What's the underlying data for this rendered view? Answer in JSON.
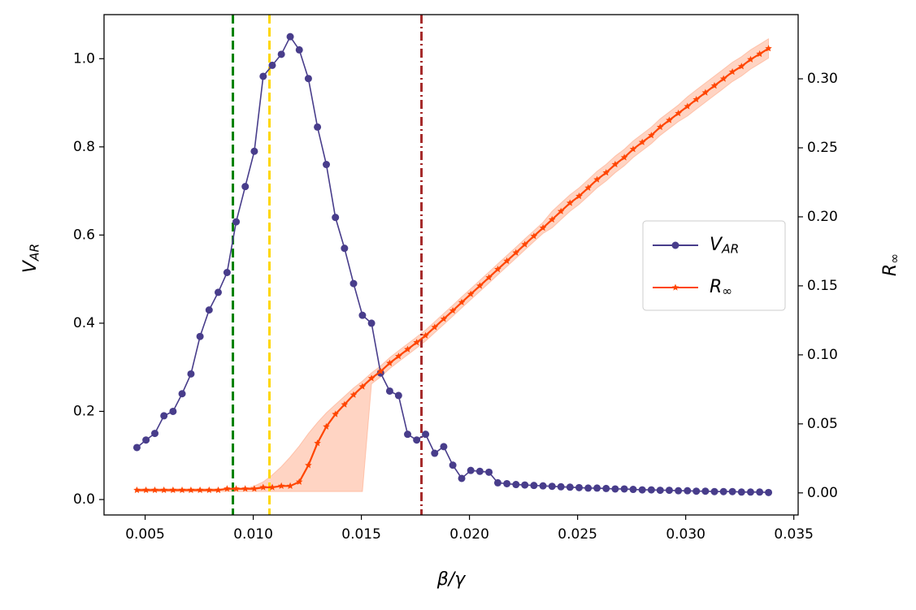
{
  "chart_data": {
    "type": "line",
    "x_label": "β/γ",
    "y_label": "V_AR",
    "y2_label": "R_∞",
    "x": [
      0.00462,
      0.00504,
      0.00545,
      0.00587,
      0.00629,
      0.00671,
      0.00712,
      0.00754,
      0.00796,
      0.00838,
      0.00879,
      0.00921,
      0.00963,
      0.01005,
      0.01046,
      0.01088,
      0.0113,
      0.01171,
      0.01213,
      0.01255,
      0.01297,
      0.01338,
      0.0138,
      0.01422,
      0.01464,
      0.01505,
      0.01547,
      0.01589,
      0.01631,
      0.01672,
      0.01714,
      0.01756,
      0.01797,
      0.01839,
      0.01881,
      0.01923,
      0.01964,
      0.02006,
      0.02048,
      0.0209,
      0.02131,
      0.02173,
      0.02215,
      0.02256,
      0.02298,
      0.0234,
      0.02382,
      0.02423,
      0.02465,
      0.02507,
      0.02549,
      0.0259,
      0.02632,
      0.02674,
      0.02716,
      0.02757,
      0.02799,
      0.02841,
      0.02882,
      0.02924,
      0.02966,
      0.03008,
      0.03049,
      0.03091,
      0.03133,
      0.03175,
      0.03216,
      0.03258,
      0.033,
      0.03342,
      0.03383
    ],
    "series": [
      {
        "name": "V_AR",
        "color": "#483d8b",
        "marker": "circle",
        "axis": "y",
        "values": [
          0.118,
          0.135,
          0.15,
          0.19,
          0.2,
          0.24,
          0.285,
          0.37,
          0.43,
          0.47,
          0.515,
          0.63,
          0.71,
          0.79,
          0.96,
          0.985,
          1.01,
          1.05,
          1.02,
          0.955,
          0.845,
          0.76,
          0.64,
          0.57,
          0.49,
          0.418,
          0.4,
          0.287,
          0.246,
          0.236,
          0.148,
          0.135,
          0.148,
          0.105,
          0.12,
          0.078,
          0.048,
          0.066,
          0.064,
          0.062,
          0.038,
          0.036,
          0.034,
          0.033,
          0.032,
          0.031,
          0.03,
          0.029,
          0.028,
          0.027,
          0.026,
          0.026,
          0.025,
          0.024,
          0.024,
          0.023,
          0.022,
          0.022,
          0.021,
          0.021,
          0.02,
          0.02,
          0.019,
          0.019,
          0.018,
          0.018,
          0.018,
          0.017,
          0.017,
          0.017,
          0.016
        ]
      },
      {
        "name": "R_∞",
        "color": "#ff4500",
        "marker": "star",
        "axis": "y2",
        "band_color": "#ffa07a",
        "values": [
          0.002,
          0.002,
          0.002,
          0.002,
          0.002,
          0.002,
          0.002,
          0.002,
          0.002,
          0.002,
          0.003,
          0.003,
          0.003,
          0.003,
          0.004,
          0.004,
          0.005,
          0.005,
          0.008,
          0.02,
          0.036,
          0.048,
          0.057,
          0.064,
          0.071,
          0.077,
          0.083,
          0.088,
          0.094,
          0.099,
          0.104,
          0.109,
          0.114,
          0.12,
          0.126,
          0.132,
          0.138,
          0.144,
          0.15,
          0.156,
          0.162,
          0.168,
          0.174,
          0.18,
          0.186,
          0.192,
          0.198,
          0.204,
          0.21,
          0.215,
          0.221,
          0.227,
          0.232,
          0.238,
          0.243,
          0.249,
          0.254,
          0.259,
          0.265,
          0.27,
          0.275,
          0.28,
          0.285,
          0.29,
          0.295,
          0.3,
          0.305,
          0.309,
          0.314,
          0.318,
          0.322
        ],
        "upper": [
          0.003,
          0.003,
          0.003,
          0.003,
          0.003,
          0.003,
          0.003,
          0.003,
          0.003,
          0.003,
          0.003,
          0.003,
          0.003,
          0.005,
          0.008,
          0.013,
          0.019,
          0.026,
          0.034,
          0.043,
          0.051,
          0.058,
          0.064,
          0.07,
          0.076,
          0.081,
          0.087,
          0.092,
          0.098,
          0.103,
          0.108,
          0.113,
          0.118,
          0.124,
          0.13,
          0.136,
          0.142,
          0.148,
          0.154,
          0.16,
          0.166,
          0.172,
          0.178,
          0.184,
          0.19,
          0.196,
          0.204,
          0.21,
          0.216,
          0.221,
          0.227,
          0.233,
          0.238,
          0.244,
          0.249,
          0.255,
          0.26,
          0.265,
          0.271,
          0.276,
          0.281,
          0.287,
          0.292,
          0.297,
          0.302,
          0.307,
          0.312,
          0.316,
          0.321,
          0.325,
          0.329
        ],
        "lower": [
          0.001,
          0.001,
          0.001,
          0.001,
          0.001,
          0.001,
          0.001,
          0.001,
          0.001,
          0.001,
          0.001,
          0.001,
          0.001,
          0.001,
          0.001,
          0.001,
          0.001,
          0.001,
          0.001,
          0.001,
          0.001,
          0.001,
          0.001,
          0.001,
          0.001,
          0.001,
          0.079,
          0.084,
          0.09,
          0.095,
          0.1,
          0.105,
          0.11,
          0.116,
          0.122,
          0.128,
          0.134,
          0.14,
          0.146,
          0.152,
          0.158,
          0.164,
          0.17,
          0.176,
          0.182,
          0.188,
          0.192,
          0.198,
          0.204,
          0.209,
          0.215,
          0.221,
          0.226,
          0.232,
          0.237,
          0.243,
          0.248,
          0.253,
          0.259,
          0.264,
          0.269,
          0.273,
          0.278,
          0.283,
          0.288,
          0.293,
          0.298,
          0.302,
          0.307,
          0.311,
          0.315
        ]
      }
    ],
    "vlines": [
      {
        "x": 0.00906,
        "color": "#008000",
        "style": "dashed"
      },
      {
        "x": 0.01075,
        "color": "#ffd700",
        "style": "dashed"
      },
      {
        "x": 0.01778,
        "color": "#a52a2a",
        "style": "dashdot"
      }
    ],
    "xlim": [
      0.0031,
      0.0352
    ],
    "xticks": [
      0.005,
      {
        "value": 0.01,
        "label": "0.010"
      },
      0.015,
      {
        "value": 0.02,
        "label": "0.020"
      },
      0.025,
      {
        "value": 0.03,
        "label": "0.030"
      },
      0.035
    ],
    "ylim": [
      -0.035,
      1.1
    ],
    "yticks": [
      {
        "value": 0,
        "label": "0.0"
      },
      0.2,
      0.4,
      0.6,
      0.8,
      {
        "value": 1,
        "label": "1.0"
      }
    ],
    "y2lim": [
      -0.016,
      0.3465
    ],
    "y2ticks": [
      {
        "value": 0,
        "label": "0.00"
      },
      0.05,
      {
        "value": 0.1,
        "label": "0.10"
      },
      0.15,
      {
        "value": 0.2,
        "label": "0.20"
      },
      0.25,
      {
        "value": 0.3,
        "label": "0.30"
      }
    ],
    "legend": "right",
    "grid": false
  }
}
